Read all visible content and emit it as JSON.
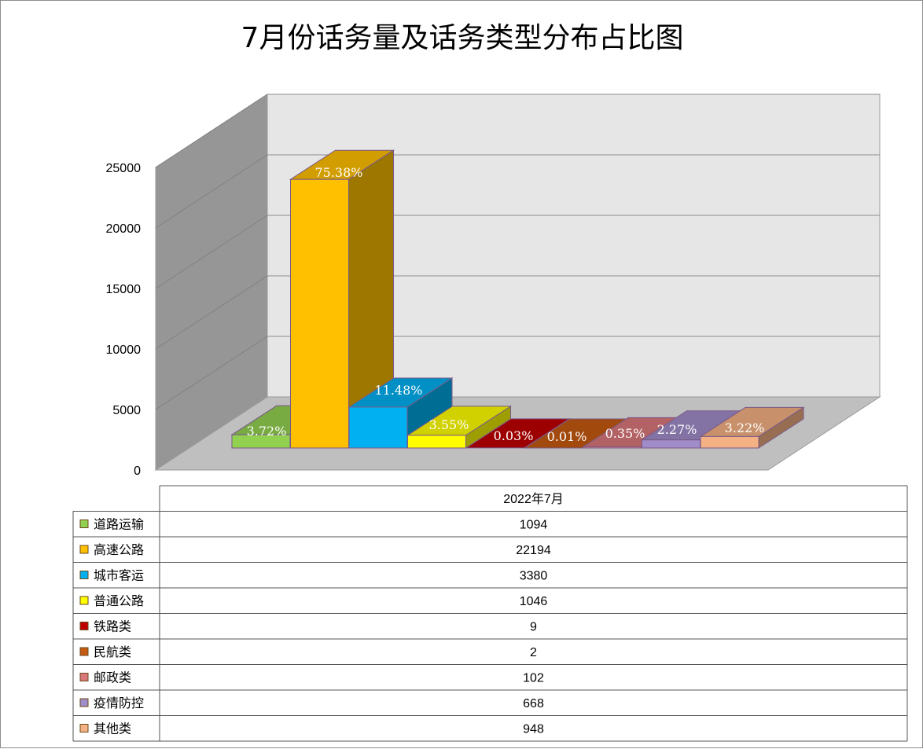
{
  "chart_data": {
    "type": "bar",
    "title": "7月份话务量及话务类型分布占比图",
    "column_header": "2022年7月",
    "ylim": [
      0,
      25000
    ],
    "yticks": [
      0,
      5000,
      10000,
      15000,
      20000,
      25000
    ],
    "categories": [
      "道路运输",
      "高速公路",
      "城市客运",
      "普通公路",
      "铁路类",
      "民航类",
      "邮政类",
      "疫情防控",
      "其他类"
    ],
    "values": [
      1094,
      22194,
      3380,
      1046,
      9,
      2,
      102,
      668,
      948
    ],
    "percent_labels": [
      "3.72%",
      "75.38%",
      "11.48%",
      "3.55%",
      "0.03%",
      "0.01%",
      "0.35%",
      "2.27%",
      "3.22%"
    ],
    "colors": [
      "#92d050",
      "#ffc000",
      "#00b0f0",
      "#ffff00",
      "#c00000",
      "#c55a11",
      "#d9777a",
      "#a08cc8",
      "#f4b183"
    ],
    "grid": true,
    "legend": "data-table-bottom"
  }
}
